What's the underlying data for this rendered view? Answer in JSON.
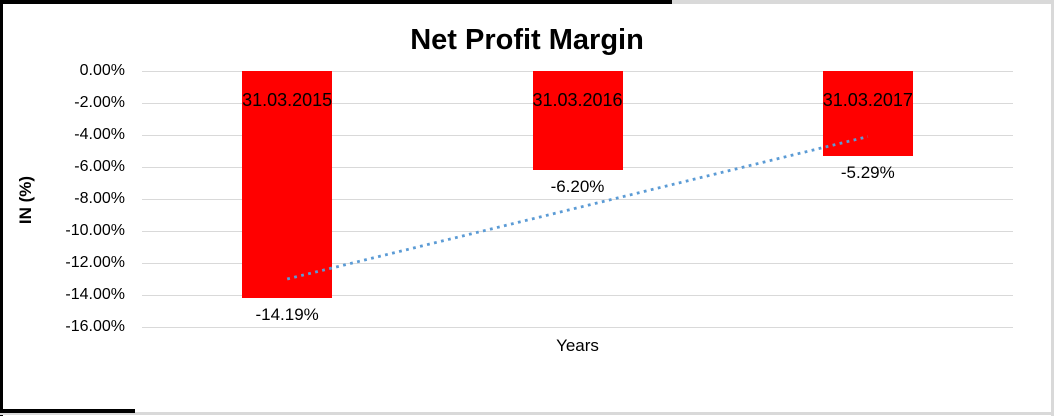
{
  "chart_data": {
    "type": "bar",
    "title": "Net Profit Margin",
    "xlabel": "Years",
    "ylabel": "IN (%)",
    "categories": [
      "31.03.2015",
      "31.03.2016",
      "31.03.2017"
    ],
    "values": [
      -14.19,
      -6.2,
      -5.29
    ],
    "value_labels": [
      "-14.19%",
      "-6.20%",
      "-5.29%"
    ],
    "yticks": [
      {
        "value": 0,
        "label": "0.00%"
      },
      {
        "value": -2,
        "label": "-2.00%"
      },
      {
        "value": -4,
        "label": "-4.00%"
      },
      {
        "value": -6,
        "label": "-6.00%"
      },
      {
        "value": -8,
        "label": "-8.00%"
      },
      {
        "value": -10,
        "label": "-10.00%"
      },
      {
        "value": -12,
        "label": "-12.00%"
      },
      {
        "value": -14,
        "label": "-14.00%"
      },
      {
        "value": -16,
        "label": "-16.00%"
      }
    ],
    "ylim": [
      -16,
      0
    ],
    "grid": true,
    "legend": "none",
    "bar_color": "#ff0000",
    "gridline_color": "#d9d9d9",
    "trendline": {
      "kind": "linear",
      "style": "dotted",
      "color": "#5b9bd5",
      "start_value": -13.0,
      "end_value": -4.1
    }
  }
}
